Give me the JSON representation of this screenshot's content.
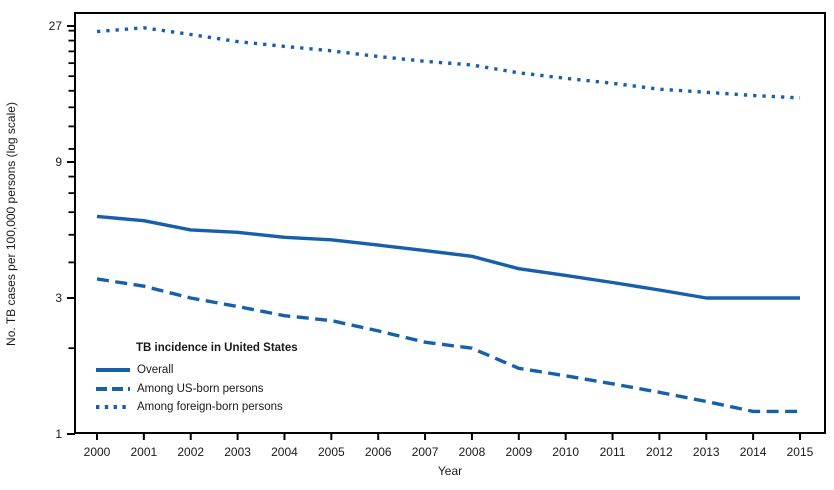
{
  "colors": {
    "series_blue": "#1660AB",
    "axis_black": "#000000",
    "text_ink": "#1a1a1a"
  },
  "chart_data": {
    "type": "line",
    "x": [
      2000,
      2001,
      2002,
      2003,
      2004,
      2005,
      2006,
      2007,
      2008,
      2009,
      2010,
      2011,
      2012,
      2013,
      2014,
      2015
    ],
    "series": [
      {
        "name": "Overall",
        "line_style": "solid",
        "values": [
          5.8,
          5.6,
          5.2,
          5.1,
          4.9,
          4.8,
          4.6,
          4.4,
          4.2,
          3.8,
          3.6,
          3.4,
          3.2,
          3.0,
          3.0,
          3.0
        ]
      },
      {
        "name": "Among US-born persons",
        "line_style": "dashed",
        "values": [
          3.5,
          3.3,
          3.0,
          2.8,
          2.6,
          2.5,
          2.3,
          2.1,
          2.0,
          1.7,
          1.6,
          1.5,
          1.4,
          1.3,
          1.2,
          1.2
        ]
      },
      {
        "name": "Among foreign-born persons",
        "line_style": "dotted",
        "values": [
          25.8,
          26.6,
          25.2,
          23.8,
          22.9,
          22.1,
          21.1,
          20.3,
          19.7,
          18.5,
          17.7,
          17.0,
          16.2,
          15.8,
          15.4,
          15.1
        ]
      }
    ],
    "legend": {
      "title": "TB incidence in United States",
      "position": "lower-left-inside"
    },
    "title": "",
    "xlabel": "Year",
    "ylabel": "No. TB cases per 100,000 persons (log scale)",
    "y_scale": "log base 3",
    "y_major_ticks": [
      1,
      3,
      9,
      27
    ],
    "y_minor_ticks": [
      2,
      4,
      5,
      6,
      7,
      8,
      10,
      12,
      14,
      16,
      18,
      20,
      22,
      24,
      26
    ],
    "ylim": [
      1,
      28.5
    ],
    "xlim": [
      2000,
      2015
    ],
    "grid": false
  }
}
